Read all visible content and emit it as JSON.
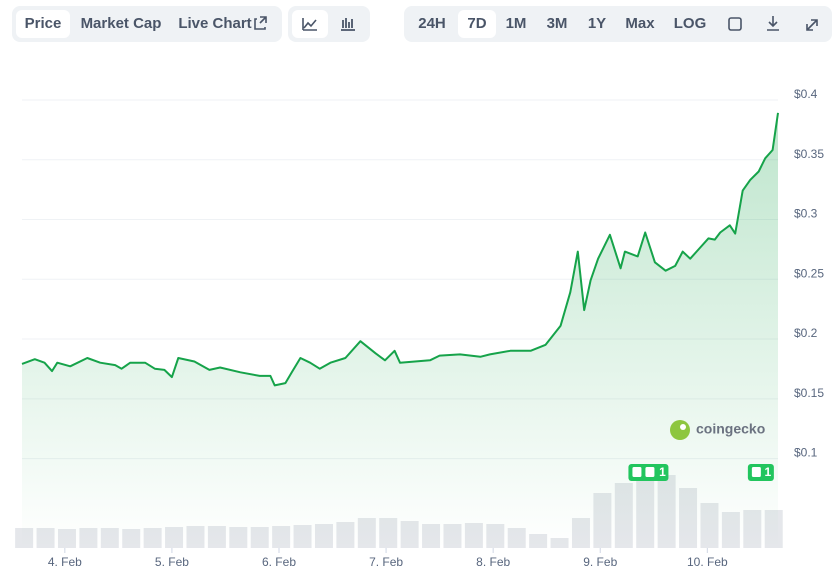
{
  "toolbar": {
    "tabs": [
      "Price",
      "Market Cap",
      "Live Chart"
    ],
    "ranges": [
      "24H",
      "7D",
      "1M",
      "3M",
      "1Y",
      "Max",
      "LOG"
    ]
  },
  "chart_data": {
    "type": "line",
    "watermark": "coingecko",
    "color": "#16a34a",
    "grid": true,
    "x": [
      3.6,
      3.72,
      3.81,
      3.88,
      3.93,
      4.05,
      4.21,
      4.33,
      4.47,
      4.53,
      4.61,
      4.75,
      4.84,
      4.93,
      5.0,
      5.06,
      5.21,
      5.35,
      5.45,
      5.64,
      5.82,
      5.92,
      5.96,
      6.06,
      6.12,
      6.2,
      6.29,
      6.38,
      6.48,
      6.62,
      6.76,
      6.9,
      6.99,
      7.08,
      7.13,
      7.27,
      7.41,
      7.5,
      7.69,
      7.88,
      7.97,
      8.16,
      8.35,
      8.49,
      8.63,
      8.72,
      8.79,
      8.85,
      8.91,
      8.98,
      9.09,
      9.19,
      9.23,
      9.35,
      9.42,
      9.51,
      9.61,
      9.7,
      9.77,
      9.84,
      9.93,
      10.01,
      10.07,
      10.12,
      10.21,
      10.26,
      10.33,
      10.4,
      10.48,
      10.54,
      10.61,
      10.66
    ],
    "series": [
      {
        "name": "Price",
        "color": "#16a34a",
        "values": [
          0.175,
          0.179,
          0.176,
          0.169,
          0.176,
          0.173,
          0.18,
          0.176,
          0.174,
          0.171,
          0.176,
          0.176,
          0.171,
          0.17,
          0.164,
          0.18,
          0.177,
          0.17,
          0.172,
          0.168,
          0.165,
          0.165,
          0.157,
          0.159,
          0.168,
          0.18,
          0.176,
          0.171,
          0.176,
          0.18,
          0.194,
          0.184,
          0.178,
          0.186,
          0.176,
          0.177,
          0.178,
          0.182,
          0.183,
          0.181,
          0.183,
          0.186,
          0.186,
          0.191,
          0.207,
          0.235,
          0.269,
          0.22,
          0.245,
          0.263,
          0.283,
          0.255,
          0.269,
          0.265,
          0.285,
          0.26,
          0.253,
          0.257,
          0.269,
          0.263,
          0.272,
          0.28,
          0.279,
          0.285,
          0.291,
          0.284,
          0.32,
          0.329,
          0.336,
          0.347,
          0.354,
          0.385
        ]
      }
    ],
    "volume": {
      "color": "#e5e7eb",
      "x": [
        3.62,
        3.82,
        4.02,
        4.22,
        4.42,
        4.62,
        4.82,
        5.02,
        5.22,
        5.42,
        5.62,
        5.82,
        6.02,
        6.22,
        6.42,
        6.62,
        6.82,
        7.02,
        7.22,
        7.42,
        7.62,
        7.82,
        8.02,
        8.22,
        8.42,
        8.62,
        8.82,
        9.02,
        9.22,
        9.42,
        9.62,
        9.82,
        10.02,
        10.22,
        10.42,
        10.62
      ],
      "values": [
        20,
        20,
        19,
        20,
        20,
        19,
        20,
        21,
        22,
        22,
        21,
        21,
        22,
        23,
        24,
        26,
        30,
        30,
        27,
        24,
        24,
        25,
        24,
        20,
        14,
        10,
        30,
        55,
        65,
        72,
        73,
        60,
        45,
        36,
        38,
        38
      ]
    },
    "y2lim": [
      0,
      100
    ],
    "xlim": [
      3.6,
      10.66
    ],
    "xticks": [
      {
        "value": 4,
        "label": "4. Feb"
      },
      {
        "value": 5,
        "label": "5. Feb"
      },
      {
        "value": 6,
        "label": "6. Feb"
      },
      {
        "value": 7,
        "label": "7. Feb"
      },
      {
        "value": 8,
        "label": "8. Feb"
      },
      {
        "value": 9,
        "label": "9. Feb"
      },
      {
        "value": 10,
        "label": "10. Feb"
      }
    ],
    "ylim": [
      0.021,
      0.4
    ],
    "yticks": [
      {
        "value": 0.1,
        "label": "$0.1"
      },
      {
        "value": 0.15,
        "label": "$0.15"
      },
      {
        "value": 0.2,
        "label": "$0.2"
      },
      {
        "value": 0.25,
        "label": "$0.25"
      },
      {
        "value": 0.3,
        "label": "$0.3"
      },
      {
        "value": 0.35,
        "label": "$0.35"
      },
      {
        "value": 0.4,
        "label": "$0.4"
      }
    ],
    "events": [
      {
        "x": 9.45,
        "label": "1"
      },
      {
        "x": 10.5,
        "label": "1"
      }
    ]
  }
}
